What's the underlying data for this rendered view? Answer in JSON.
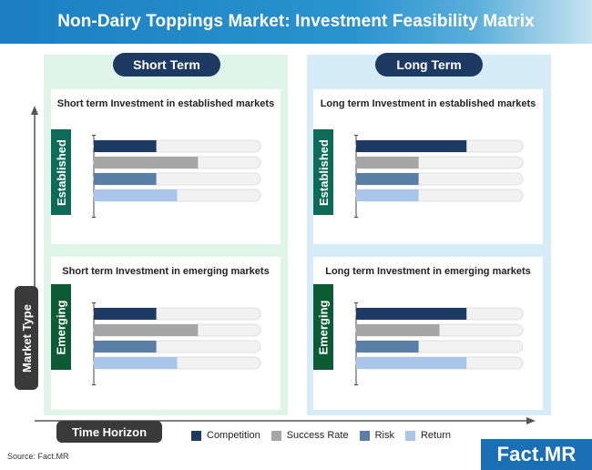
{
  "title": "Non-Dairy Toppings Market: Investment Feasibility Matrix",
  "columns": {
    "short": "Short Term",
    "long": "Long Term"
  },
  "axes": {
    "y_label": "Market Type",
    "x_label": "Time Horizon"
  },
  "tabs": {
    "established": "Established",
    "emerging": "Emerging"
  },
  "source": "Source: Fact.MR",
  "logo": "Fact.MR",
  "colors": {
    "Competition": "#1d3a63",
    "Success Rate": "#a6a6a6",
    "Risk": "#5a7fa6",
    "Return": "#a9c6ea",
    "track": "#f2f2f2",
    "track_border": "#d9d9d9",
    "short_tab": "#0e6b57",
    "long_tab": "#0e6b57",
    "short_bg": "#dff5ea",
    "long_bg": "#d6edf7"
  },
  "chart_data": [
    {
      "type": "bar",
      "title": "Short term Investment in established markets",
      "tab": "Established",
      "categories": [
        "Competition",
        "Success Rate",
        "Risk",
        "Return"
      ],
      "values": [
        3,
        5,
        3,
        4
      ],
      "xlim": [
        0,
        8
      ]
    },
    {
      "type": "bar",
      "title": "Long term Investment in established markets",
      "tab": "Established",
      "categories": [
        "Competition",
        "Success Rate",
        "Risk",
        "Return"
      ],
      "values": [
        5.3,
        3,
        3,
        3
      ],
      "xlim": [
        0,
        8
      ]
    },
    {
      "type": "bar",
      "title": "Short term Investment in emerging markets",
      "tab": "Emerging",
      "categories": [
        "Competition",
        "Success Rate",
        "Risk",
        "Return"
      ],
      "values": [
        3,
        5,
        3,
        4
      ],
      "xlim": [
        0,
        8
      ]
    },
    {
      "type": "bar",
      "title": "Long term Investment in emerging markets",
      "tab": "Emerging",
      "categories": [
        "Competition",
        "Success Rate",
        "Risk",
        "Return"
      ],
      "values": [
        5.3,
        4,
        3,
        5.3
      ],
      "xlim": [
        0,
        8
      ]
    }
  ],
  "legend": [
    "Competition",
    "Success Rate",
    "Risk",
    "Return"
  ]
}
